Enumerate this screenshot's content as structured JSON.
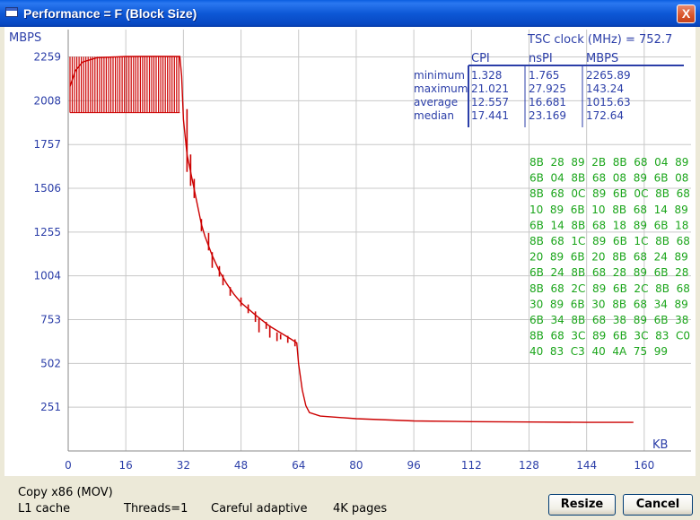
{
  "window": {
    "title": "Performance = F (Block Size)",
    "close_label": "X"
  },
  "chart_data": {
    "type": "line",
    "ylabel": "MBPS",
    "xlabel": "KB",
    "x_ticks": [
      0,
      16,
      32,
      48,
      64,
      80,
      96,
      112,
      128,
      144,
      160
    ],
    "y_ticks": [
      251,
      502,
      753,
      1004,
      1255,
      1506,
      1757,
      2008,
      2259
    ],
    "xlim": [
      0,
      173
    ],
    "ylim": [
      0,
      2416
    ],
    "color": "#cc0000",
    "series": [
      {
        "points": [
          [
            0.5,
            2090
          ],
          [
            2,
            2180
          ],
          [
            4,
            2230
          ],
          [
            8,
            2255
          ],
          [
            16,
            2262
          ],
          [
            24,
            2263
          ],
          [
            31,
            2262
          ],
          [
            31.5,
            2150
          ],
          [
            32,
            1900
          ],
          [
            33,
            1700
          ],
          [
            34,
            1600
          ],
          [
            35,
            1500
          ],
          [
            36,
            1400
          ],
          [
            37,
            1300
          ],
          [
            38,
            1230
          ],
          [
            40,
            1120
          ],
          [
            42,
            1030
          ],
          [
            44,
            960
          ],
          [
            46,
            900
          ],
          [
            48,
            850
          ],
          [
            52,
            780
          ],
          [
            56,
            715
          ],
          [
            60,
            665
          ],
          [
            62,
            640
          ],
          [
            63.5,
            620
          ],
          [
            64,
            500
          ],
          [
            65,
            350
          ],
          [
            66,
            260
          ],
          [
            67,
            220
          ],
          [
            70,
            200
          ],
          [
            80,
            185
          ],
          [
            96,
            172
          ],
          [
            112,
            168
          ],
          [
            128,
            166
          ],
          [
            144,
            164
          ],
          [
            157,
            164
          ]
        ],
        "noise_band": {
          "x_from": 0.5,
          "x_to": 31,
          "y_low": 1940,
          "y_high": 2260,
          "step_kb": 0.63
        },
        "spikes": [
          [
            33,
            1600,
            1960
          ],
          [
            34,
            1520,
            1700
          ],
          [
            35,
            1450,
            1560
          ],
          [
            37,
            1260,
            1330
          ],
          [
            39,
            1150,
            1250
          ],
          [
            40,
            1050,
            1140
          ],
          [
            42,
            1000,
            1060
          ],
          [
            43,
            950,
            1010
          ],
          [
            45,
            890,
            940
          ],
          [
            48,
            830,
            880
          ],
          [
            50,
            790,
            840
          ],
          [
            52,
            740,
            800
          ],
          [
            53,
            680,
            760
          ],
          [
            55,
            700,
            740
          ],
          [
            56,
            650,
            720
          ],
          [
            58,
            630,
            680
          ],
          [
            59,
            640,
            670
          ],
          [
            61,
            620,
            660
          ],
          [
            63,
            600,
            640
          ]
        ]
      }
    ]
  },
  "stats": {
    "clock_label": "TSC clock (MHz)  =  752.7",
    "columns": [
      "CPI",
      "nsPI",
      "MBPS"
    ],
    "rows": [
      {
        "label": "minimum",
        "values": [
          "1.328",
          "1.765",
          "2265.89"
        ]
      },
      {
        "label": "maximum",
        "values": [
          "21.021",
          "27.925",
          "143.24"
        ]
      },
      {
        "label": "average",
        "values": [
          "12.557",
          "16.681",
          "1015.63"
        ]
      },
      {
        "label": "median",
        "values": [
          "17.441",
          "23.169",
          "172.64"
        ]
      }
    ]
  },
  "hex_dump": [
    "8B  28  89  2B  8B  68  04  89",
    "6B  04  8B  68  08  89  6B  08",
    "8B  68  0C  89  6B  0C  8B  68",
    "10  89  6B  10  8B  68  14  89",
    "6B  14  8B  68  18  89  6B  18",
    "8B  68  1C  89  6B  1C  8B  68",
    "20  89  6B  20  8B  68  24  89",
    "6B  24  8B  68  28  89  6B  28",
    "8B  68  2C  89  6B  2C  8B  68",
    "30  89  6B  30  8B  68  34  89",
    "6B  34  8B  68  38  89  6B  38",
    "8B  68  3C  89  6B  3C  83  C0",
    "40  83  C3  40  4A  75  99"
  ],
  "status": {
    "test_name": "Copy x86 (MOV)",
    "cache": "L1 cache",
    "threads": "Threads=1",
    "mode": "Careful adaptive",
    "pages": "4K pages"
  },
  "buttons": {
    "resize": "Resize",
    "cancel": "Cancel"
  }
}
